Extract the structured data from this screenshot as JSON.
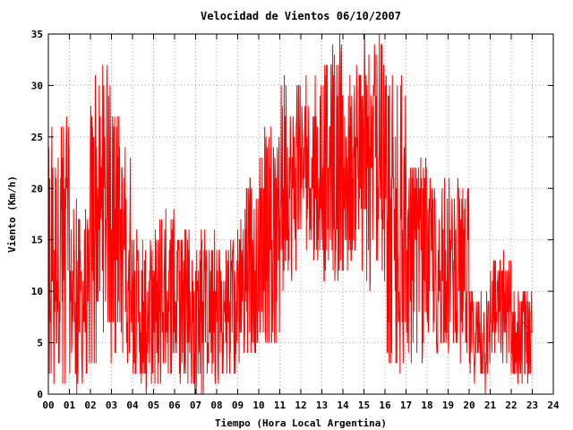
{
  "chart_data": {
    "type": "line",
    "title": "Velocidad de Vientos 06/10/2007",
    "xlabel": "Tiempo (Hora Local Argentina)",
    "ylabel": "Viento (Km/h)",
    "xlim": [
      0,
      24
    ],
    "ylim": [
      0,
      35
    ],
    "x_tick_labels": [
      "00",
      "01",
      "02",
      "03",
      "04",
      "05",
      "06",
      "07",
      "08",
      "09",
      "10",
      "11",
      "12",
      "13",
      "14",
      "15",
      "16",
      "17",
      "18",
      "19",
      "20",
      "21",
      "22",
      "23",
      "24"
    ],
    "y_ticks": [
      0,
      5,
      10,
      15,
      20,
      25,
      30,
      35
    ],
    "grid": true,
    "series": [
      {
        "color": "#ff0000",
        "hourly_envelope": [
          {
            "hour": 0,
            "min": 0,
            "max": 27
          },
          {
            "hour": 1,
            "min": 0,
            "max": 19
          },
          {
            "hour": 2,
            "min": 3,
            "max": 32
          },
          {
            "hour": 3,
            "min": 3,
            "max": 27
          },
          {
            "hour": 4,
            "min": 0,
            "max": 16
          },
          {
            "hour": 5,
            "min": 0,
            "max": 18
          },
          {
            "hour": 6,
            "min": 0,
            "max": 16
          },
          {
            "hour": 7,
            "min": 0,
            "max": 16
          },
          {
            "hour": 8,
            "min": 0,
            "max": 15
          },
          {
            "hour": 9,
            "min": 3,
            "max": 21
          },
          {
            "hour": 10,
            "min": 5,
            "max": 26
          },
          {
            "hour": 11,
            "min": 10,
            "max": 31
          },
          {
            "hour": 12,
            "min": 13,
            "max": 31
          },
          {
            "hour": 13,
            "min": 11,
            "max": 35
          },
          {
            "hour": 14,
            "min": 11,
            "max": 32
          },
          {
            "hour": 15,
            "min": 10,
            "max": 35
          },
          {
            "hour": 16,
            "min": 2,
            "max": 31
          },
          {
            "hour": 17,
            "min": 3,
            "max": 23
          },
          {
            "hour": 18,
            "min": 3,
            "max": 21
          },
          {
            "hour": 19,
            "min": 3,
            "max": 21
          },
          {
            "hour": 20,
            "min": 0,
            "max": 11
          },
          {
            "hour": 21,
            "min": 2,
            "max": 14
          },
          {
            "hour": 22,
            "min": 0,
            "max": 11
          }
        ],
        "points": []
      }
    ]
  }
}
